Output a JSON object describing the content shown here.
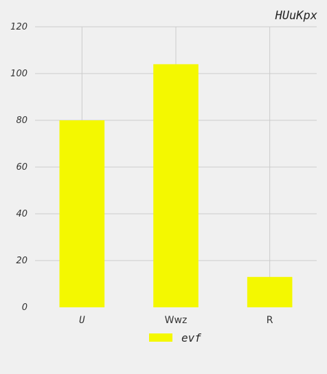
{
  "chart_data": {
    "type": "bar",
    "title": "HUuKpx",
    "xlabel": "",
    "ylabel": "",
    "categories": [
      "U",
      "Wwz",
      "R"
    ],
    "series": [
      {
        "name": "evf",
        "values": [
          80,
          104,
          13
        ]
      }
    ],
    "ylim": [
      0,
      120
    ],
    "yticks": [
      0,
      20,
      40,
      60,
      80,
      100,
      120
    ],
    "grid": true,
    "legend_position": "bottom-center",
    "colors": {
      "bar": "#f4f800",
      "background": "#f0f0f0",
      "grid": "#cbcbcb"
    }
  }
}
